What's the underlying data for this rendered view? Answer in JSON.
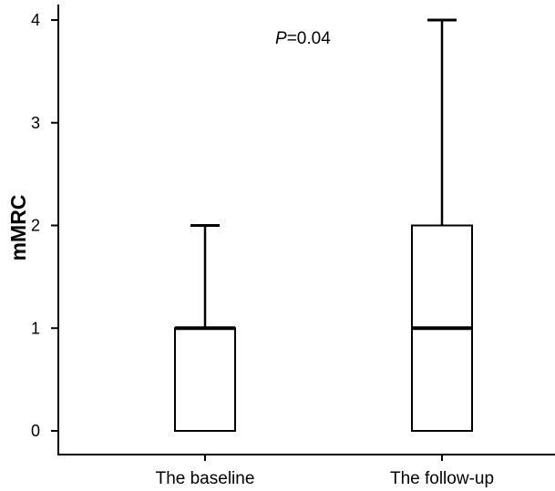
{
  "chart_data": {
    "type": "box",
    "ylabel": "mMRC",
    "xlabel": "",
    "ylim": [
      0,
      4
    ],
    "yticks": [
      0,
      1,
      2,
      3,
      4
    ],
    "grid": false,
    "categories": [
      "The baseline",
      "The follow-up"
    ],
    "boxes": [
      {
        "category": "The baseline",
        "min": 0,
        "q1": 0,
        "median": 1,
        "q3": 1,
        "max": 2
      },
      {
        "category": "The follow-up",
        "min": 0,
        "q1": 0,
        "median": 1,
        "q3": 2,
        "max": 4
      }
    ],
    "annotation": {
      "italic": "P",
      "text": "=0.04"
    },
    "colors": {
      "line": "#000000",
      "box_fill": "#ffffff"
    }
  }
}
